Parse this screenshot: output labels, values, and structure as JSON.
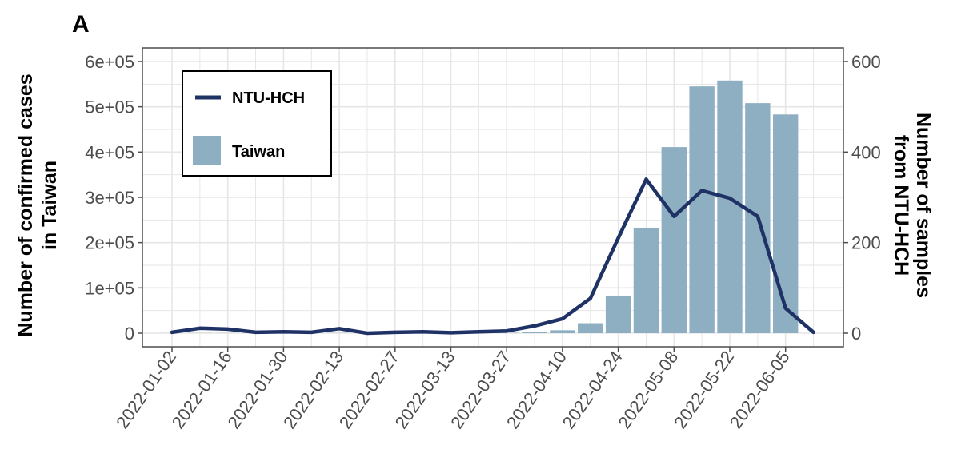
{
  "panel_label": "A",
  "chart_data": {
    "type": "bar+line",
    "x_dates": [
      "2022-01-02",
      "2022-01-09",
      "2022-01-16",
      "2022-01-23",
      "2022-01-30",
      "2022-02-06",
      "2022-02-13",
      "2022-02-20",
      "2022-02-27",
      "2022-03-06",
      "2022-03-13",
      "2022-03-20",
      "2022-03-27",
      "2022-04-03",
      "2022-04-10",
      "2022-04-17",
      "2022-04-24",
      "2022-05-01",
      "2022-05-08",
      "2022-05-15",
      "2022-05-22",
      "2022-05-29",
      "2022-06-05",
      "2022-06-12"
    ],
    "x_tick_labels": [
      "2022-01-02",
      "2022-01-16",
      "2022-01-30",
      "2022-02-13",
      "2022-02-27",
      "2022-03-13",
      "2022-03-27",
      "2022-04-10",
      "2022-04-24",
      "2022-05-08",
      "2022-05-22",
      "2022-06-05"
    ],
    "series": [
      {
        "name": "Taiwan",
        "kind": "bar",
        "axis": "left",
        "color": "#8eaec1",
        "values": [
          200,
          300,
          300,
          300,
          200,
          300,
          400,
          300,
          300,
          300,
          400,
          500,
          800,
          3000,
          6500,
          22000,
          83000,
          233000,
          411000,
          545000,
          558000,
          508000,
          483000,
          null
        ]
      },
      {
        "name": "NTU-HCH",
        "kind": "line",
        "axis": "right",
        "color": "#1f3266",
        "values": [
          2,
          11,
          9,
          2,
          3,
          2,
          10,
          0,
          2,
          3,
          1,
          3,
          5,
          16,
          32,
          77,
          210,
          340,
          258,
          315,
          298,
          258,
          55,
          2
        ]
      }
    ],
    "y_left": {
      "label": "Number of confirmed cases in Taiwan",
      "label_lines": [
        "Number of confirmed cases",
        "in Taiwan"
      ],
      "lim": [
        -30000,
        630000
      ],
      "ticks": [
        0,
        100000,
        200000,
        300000,
        400000,
        500000,
        600000
      ],
      "tick_labels": [
        "0",
        "1e+05",
        "2e+05",
        "3e+05",
        "4e+05",
        "5e+05",
        "6e+05"
      ]
    },
    "y_right": {
      "label": "Number of samples from NTU-HCH",
      "label_lines": [
        "Number of samples",
        "from NTU-HCH"
      ],
      "lim": [
        -30,
        630
      ],
      "ticks": [
        0,
        200,
        400,
        600
      ],
      "tick_labels": [
        "0",
        "200",
        "400",
        "600"
      ]
    },
    "grid": true,
    "legend": {
      "position": "top-left",
      "entries": [
        "NTU-HCH",
        "Taiwan"
      ]
    },
    "colors": {
      "bar": "#8eaec1",
      "line": "#1f3266",
      "grid": "#e6e6e6",
      "panel_border": "#4d4d4d"
    }
  }
}
